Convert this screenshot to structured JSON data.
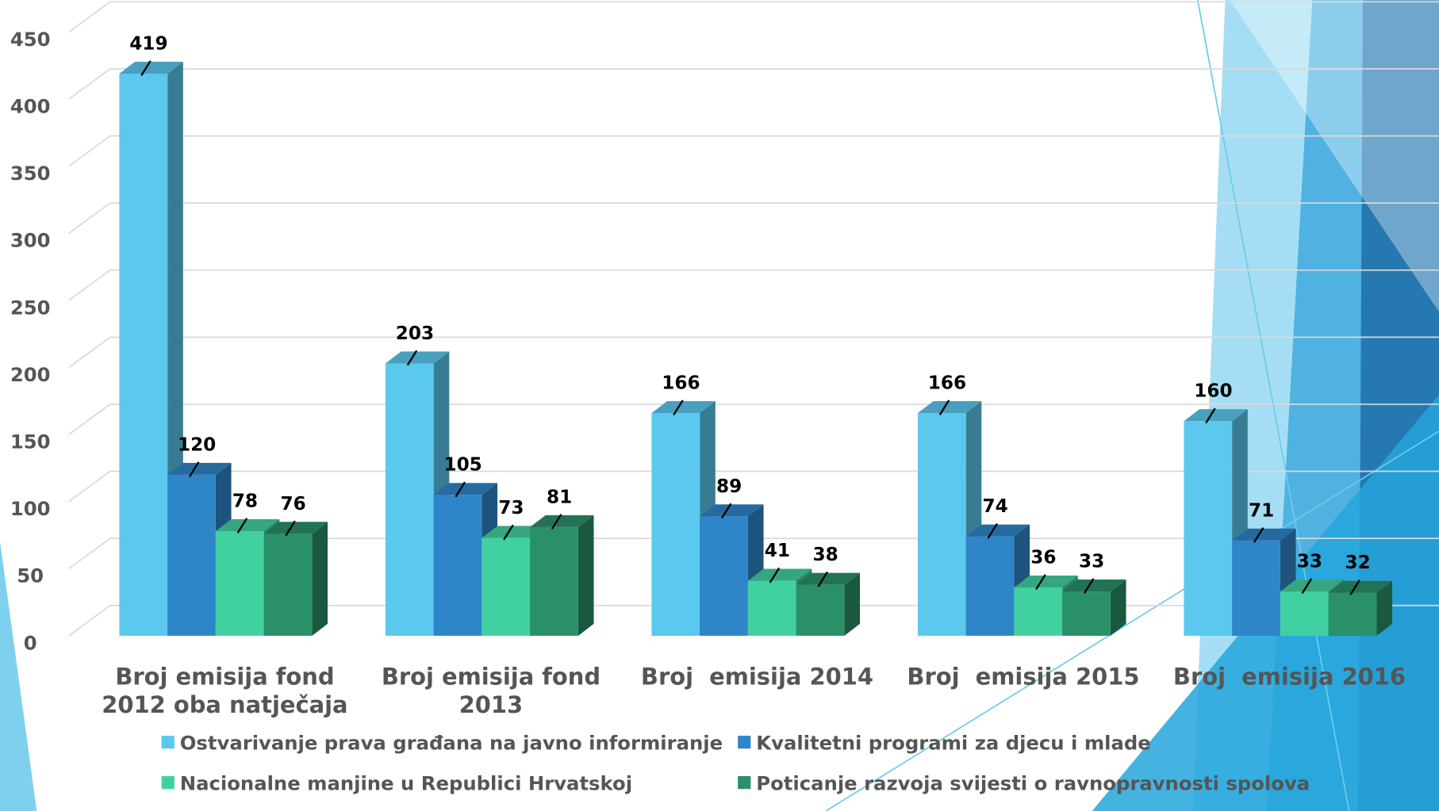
{
  "chart_data": {
    "type": "bar3d",
    "categories": [
      "Broj emisija fond 2012 oba natječaja",
      "Broj emisija fond 2013",
      "Broj  emisija 2014",
      "Broj  emisija 2015",
      "Broj  emisija 2016"
    ],
    "series": [
      {
        "name": "Ostvarivanje prava građana na javno informiranje",
        "color": "#5bc8ee",
        "values": [
          419,
          203,
          166,
          166,
          160
        ]
      },
      {
        "name": "Kvalitetni programi za djecu i mlade",
        "color": "#2e86c8",
        "values": [
          120,
          105,
          89,
          74,
          71
        ]
      },
      {
        "name": "Nacionalne manjine u Republici Hrvatskoj",
        "color": "#41d1a0",
        "values": [
          78,
          73,
          41,
          36,
          33
        ]
      },
      {
        "name": "Poticanje razvoja svijesti o ravnopravnosti spolova",
        "color": "#2a9068",
        "values": [
          76,
          81,
          38,
          33,
          32
        ]
      }
    ],
    "ylim": [
      0,
      450
    ],
    "yticks": [
      0,
      50,
      100,
      150,
      200,
      250,
      300,
      350,
      400,
      450
    ],
    "grid": true
  }
}
